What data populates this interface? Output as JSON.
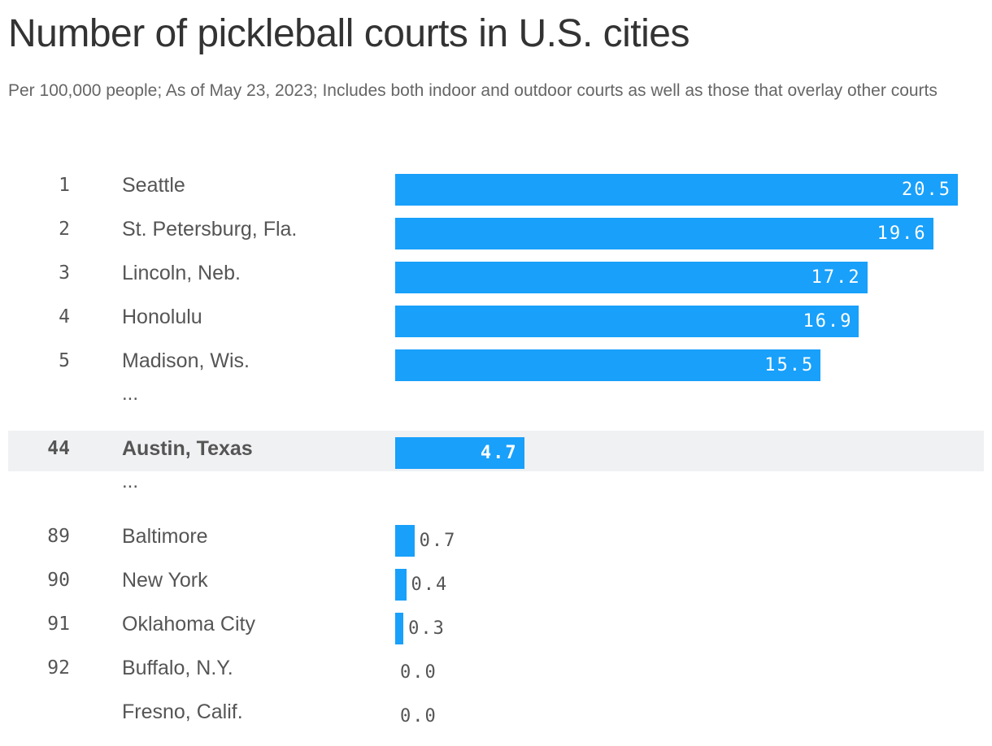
{
  "chart_data": {
    "type": "bar",
    "title": "Number of pickleball courts in U.S. cities",
    "subtitle": "Per 100,000 people; As of May 23, 2023; Includes both indoor and outdoor courts as well as those that overlay other courts",
    "rows": [
      {
        "rank": "1",
        "city": "Seattle",
        "value": 20.5,
        "label": "20.5"
      },
      {
        "rank": "2",
        "city": "St. Petersburg, Fla.",
        "value": 19.6,
        "label": "19.6"
      },
      {
        "rank": "3",
        "city": "Lincoln, Neb.",
        "value": 17.2,
        "label": "17.2"
      },
      {
        "rank": "4",
        "city": "Honolulu",
        "value": 16.9,
        "label": "16.9"
      },
      {
        "rank": "5",
        "city": "Madison, Wis.",
        "value": 15.5,
        "label": "15.5"
      },
      {
        "ellipsis": "..."
      },
      {
        "rank": "44",
        "city": "Austin, Texas",
        "value": 4.7,
        "label": "4.7",
        "highlight": true
      },
      {
        "ellipsis": "..."
      },
      {
        "rank": "89",
        "city": "Baltimore",
        "value": 0.7,
        "label": "0.7"
      },
      {
        "rank": "90",
        "city": "New York",
        "value": 0.4,
        "label": "0.4"
      },
      {
        "rank": "91",
        "city": "Oklahoma City",
        "value": 0.3,
        "label": "0.3"
      },
      {
        "rank": "92",
        "city": "Buffalo, N.Y.",
        "value": 0.0,
        "label": "0.0"
      },
      {
        "rank": "",
        "city": "Fresno, Calif.",
        "value": 0.0,
        "label": "0.0"
      }
    ],
    "xlim": [
      0,
      20.5
    ],
    "bar_color": "#18a0fb",
    "highlight_color": "#f0f1f3"
  }
}
